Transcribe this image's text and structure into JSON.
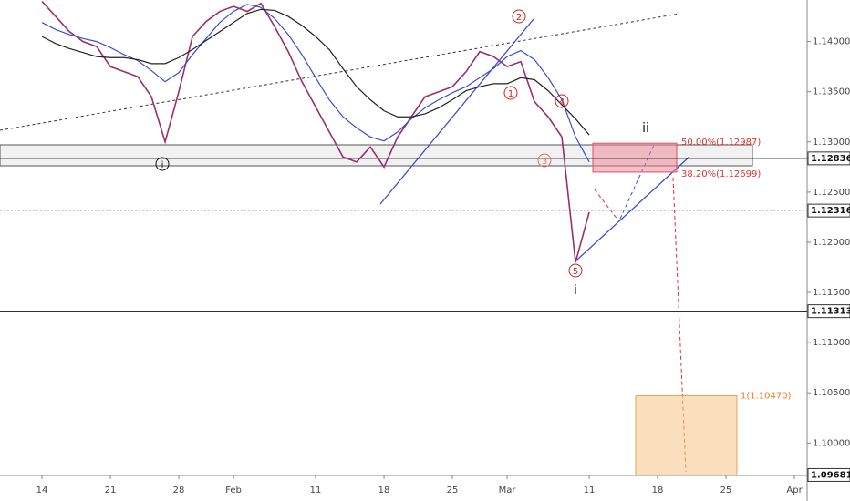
{
  "chart_data": {
    "type": "line",
    "x": [
      0,
      1,
      2,
      3,
      4,
      5,
      6,
      7,
      8,
      9,
      10,
      11,
      12,
      13,
      14,
      15,
      16,
      17,
      18,
      19,
      20,
      21,
      22,
      23,
      24,
      25,
      26,
      27,
      28,
      29,
      30,
      31,
      32,
      33,
      34,
      35,
      36,
      37,
      38,
      39,
      40
    ],
    "series": [
      {
        "color": "#9c2f6a",
        "values": [
          1.144,
          1.1425,
          1.141,
          1.14,
          1.1395,
          1.1375,
          1.137,
          1.1365,
          1.1345,
          1.13,
          1.135,
          1.1405,
          1.142,
          1.143,
          1.1435,
          1.143,
          1.1438,
          1.1415,
          1.139,
          1.136,
          1.1335,
          1.131,
          1.1285,
          1.128,
          1.1295,
          1.1275,
          1.1305,
          1.1325,
          1.1345,
          1.135,
          1.1355,
          1.137,
          1.139,
          1.1385,
          1.1375,
          1.138,
          1.134,
          1.1325,
          1.1305,
          1.118,
          1.123
        ]
      },
      {
        "color": "#3a4fd0",
        "values": [
          1.1419,
          1.1412,
          1.1407,
          1.1403,
          1.14,
          1.1394,
          1.1387,
          1.1381,
          1.1371,
          1.136,
          1.1369,
          1.1387,
          1.1403,
          1.1419,
          1.143,
          1.1437,
          1.1434,
          1.1423,
          1.1407,
          1.1387,
          1.1364,
          1.1342,
          1.1325,
          1.1314,
          1.1305,
          1.1301,
          1.131,
          1.1323,
          1.1334,
          1.1342,
          1.1349,
          1.1355,
          1.1364,
          1.1373,
          1.1385,
          1.1391,
          1.1382,
          1.1364,
          1.1342,
          1.1305,
          1.128
        ]
      },
      {
        "color": "#222222",
        "values": [
          1.1405,
          1.1398,
          1.1393,
          1.1389,
          1.1385,
          1.1384,
          1.1384,
          1.1382,
          1.1378,
          1.1378,
          1.1384,
          1.1392,
          1.1401,
          1.141,
          1.1419,
          1.1428,
          1.1432,
          1.1431,
          1.1425,
          1.1416,
          1.1405,
          1.1392,
          1.1373,
          1.1355,
          1.1342,
          1.1331,
          1.1325,
          1.1325,
          1.1328,
          1.1334,
          1.1342,
          1.1351,
          1.1355,
          1.1358,
          1.1358,
          1.1364,
          1.1362,
          1.1351,
          1.1337,
          1.1323,
          1.1307
        ]
      }
    ],
    "xlim": [
      -3.07,
      55.93
    ],
    "ylim": [
      1.09676,
      1.14414
    ],
    "xticks": [
      {
        "value": 0,
        "label": "14"
      },
      {
        "value": 5,
        "label": "21"
      },
      {
        "value": 10,
        "label": "28"
      },
      {
        "value": 14,
        "label": "Feb"
      },
      {
        "value": 20,
        "label": "11"
      },
      {
        "value": 25,
        "label": "18"
      },
      {
        "value": 30,
        "label": "25"
      },
      {
        "value": 34,
        "label": "Mar"
      },
      {
        "value": 40,
        "label": "11"
      },
      {
        "value": 45,
        "label": "18"
      },
      {
        "value": 50,
        "label": "25"
      },
      {
        "value": 55,
        "label": "Apr"
      }
    ],
    "yticks": [
      {
        "value": 1.14,
        "label": "1.14000"
      },
      {
        "value": 1.135,
        "label": "1.13500"
      },
      {
        "value": 1.13,
        "label": "1.13000"
      },
      {
        "value": 1.125,
        "label": "1.12500"
      },
      {
        "value": 1.12,
        "label": "1.12000"
      },
      {
        "value": 1.115,
        "label": "1.11500"
      },
      {
        "value": 1.11,
        "label": "1.11000"
      },
      {
        "value": 1.105,
        "label": "1.10500"
      },
      {
        "value": 1.1,
        "label": "1.10000"
      }
    ],
    "levels": [
      1.12836,
      1.12316,
      1.11313,
      1.09681
    ],
    "fib": [
      {
        "label": "50.00%(1.12987)",
        "value": 1.12987
      },
      {
        "label": "38.20%(1.12699)",
        "value": 1.12699
      },
      {
        "label": "1(1.10470)",
        "value": 1.1047
      }
    ],
    "waves": [
      "i",
      "1",
      "2",
      "3",
      "4",
      "5",
      "ii",
      "i"
    ]
  }
}
